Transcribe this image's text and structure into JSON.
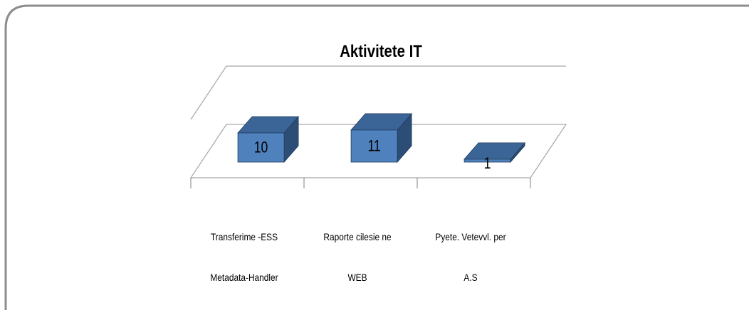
{
  "chart_data": {
    "type": "bar3d",
    "title": "Aktivitete IT",
    "categories": [
      "Transferime -ESS\nMetadata-Handler",
      "Raporte cilesie ne\nWEB",
      "Pyete. Vetevvl. per\nA.S"
    ],
    "values": [
      10,
      11,
      1
    ],
    "color": "#4f81bd",
    "ylim": [
      0,
      20
    ]
  }
}
